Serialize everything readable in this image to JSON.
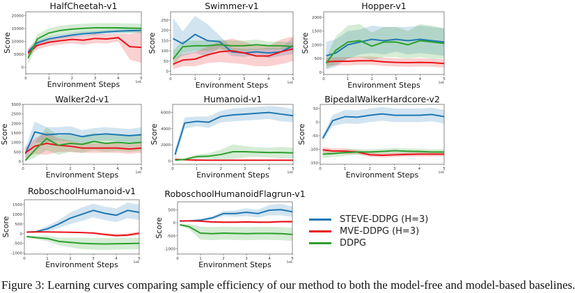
{
  "figure": {
    "caption": "Figure 3: Learning curves comparing sample efficiency of our method to both the model-free and model-based baselines.",
    "legend_entries": [
      "STEVE-DDPG (H=3)",
      "MVE-DDPG (H=3)",
      "DDPG"
    ],
    "colors": {
      "STEVE-DDPG (H=3)": "#1f77b4",
      "MVE-DDPG (H=3)": "#e8141a",
      "DDPG": "#2ca02c"
    }
  },
  "chart_data": [
    {
      "type": "line",
      "title": "HalfCheetah-v1",
      "xlabel": "Environment Steps",
      "ylabel": "Score",
      "x_offset_label": "1e6",
      "xlim": [
        0,
        5
      ],
      "ylim": [
        -2500,
        21500
      ],
      "xticks": [
        0,
        1,
        2,
        3,
        4,
        5
      ],
      "yticks": [
        0,
        5000,
        10000,
        15000,
        20000
      ],
      "x": [
        0.1,
        0.5,
        1,
        1.5,
        2,
        2.5,
        3,
        3.5,
        4,
        4.5,
        5
      ],
      "series": [
        {
          "name": "STEVE-DDPG (H=3)",
          "values": [
            6000,
            9500,
            11000,
            11800,
            12500,
            13000,
            13300,
            13700,
            14000,
            14200,
            14300
          ],
          "spread": [
            1500,
            1000,
            1000,
            900,
            900,
            900,
            900,
            900,
            900,
            900,
            900
          ]
        },
        {
          "name": "MVE-DDPG (H=3)",
          "values": [
            5500,
            8500,
            9700,
            10300,
            10800,
            10500,
            11200,
            11000,
            11500,
            8000,
            7700
          ],
          "spread": [
            1500,
            1500,
            1500,
            1500,
            1500,
            1800,
            1800,
            1800,
            1500,
            5000,
            6000
          ]
        },
        {
          "name": "DDPG",
          "values": [
            3500,
            11000,
            13300,
            14300,
            14800,
            15100,
            15300,
            15300,
            15300,
            15200,
            15100
          ],
          "spread": [
            2500,
            1800,
            1800,
            1800,
            1800,
            1800,
            1800,
            1800,
            1800,
            1800,
            1800
          ]
        }
      ]
    },
    {
      "type": "line",
      "title": "Swimmer-v1",
      "xlabel": "Environment Steps",
      "ylabel": "Score",
      "x_offset_label": "1e6",
      "xlim": [
        0,
        5
      ],
      "ylim": [
        -15,
        290
      ],
      "xticks": [
        0,
        1,
        2,
        3,
        4,
        5
      ],
      "yticks": [
        0,
        50,
        100,
        150,
        200,
        250
      ],
      "x": [
        0.1,
        0.5,
        1,
        1.5,
        2,
        2.5,
        3,
        3.5,
        4,
        4.5,
        5
      ],
      "series": [
        {
          "name": "STEVE-DDPG (H=3)",
          "values": [
            160,
            135,
            180,
            150,
            145,
            95,
            90,
            95,
            90,
            95,
            125
          ],
          "spread": [
            100,
            60,
            90,
            80,
            30,
            20,
            20,
            15,
            25,
            20,
            40
          ]
        },
        {
          "name": "MVE-DDPG (H=3)",
          "values": [
            35,
            55,
            60,
            80,
            95,
            100,
            90,
            75,
            75,
            95,
            110
          ],
          "spread": [
            25,
            30,
            35,
            40,
            50,
            60,
            55,
            50,
            50,
            60,
            60
          ]
        },
        {
          "name": "DDPG",
          "values": [
            60,
            120,
            125,
            125,
            130,
            125,
            125,
            130,
            125,
            125,
            120
          ],
          "spread": [
            40,
            30,
            25,
            25,
            25,
            25,
            25,
            25,
            20,
            20,
            20
          ]
        }
      ]
    },
    {
      "type": "line",
      "title": "Hopper-v1",
      "xlabel": "Environment Steps",
      "ylabel": "Score",
      "x_offset_label": "1e6",
      "xlim": [
        0,
        5
      ],
      "ylim": [
        -80,
        2200
      ],
      "xticks": [
        0,
        1,
        2,
        3,
        4,
        5
      ],
      "yticks": [
        0,
        500,
        1000,
        1500,
        2000
      ],
      "x": [
        0.1,
        0.5,
        1,
        1.5,
        2,
        2.5,
        3,
        3.5,
        4,
        4.5,
        5
      ],
      "series": [
        {
          "name": "STEVE-DDPG (H=3)",
          "values": [
            600,
            700,
            1000,
            1100,
            1200,
            1150,
            1200,
            1150,
            1200,
            1150,
            1100
          ],
          "spread": [
            500,
            500,
            500,
            450,
            500,
            500,
            450,
            500,
            500,
            500,
            500
          ]
        },
        {
          "name": "MVE-DDPG (H=3)",
          "values": [
            380,
            400,
            400,
            420,
            420,
            380,
            360,
            350,
            360,
            350,
            320
          ],
          "spread": [
            150,
            150,
            150,
            150,
            150,
            150,
            150,
            150,
            150,
            150,
            150
          ]
        },
        {
          "name": "DDPG",
          "values": [
            330,
            800,
            1100,
            1150,
            950,
            1100,
            1100,
            1000,
            1150,
            1100,
            1050
          ],
          "spread": [
            200,
            500,
            600,
            600,
            500,
            550,
            550,
            500,
            600,
            600,
            550
          ]
        }
      ]
    },
    {
      "type": "line",
      "title": "Walker2d-v1",
      "xlabel": "Environment Steps",
      "ylabel": "Score",
      "x_offset_label": "1e6",
      "xlim": [
        0,
        5
      ],
      "ylim": [
        -150,
        3000
      ],
      "xticks": [
        0,
        1,
        2,
        3,
        4,
        5
      ],
      "yticks": [
        0,
        500,
        1000,
        1500,
        2000,
        2500,
        3000
      ],
      "x": [
        0.1,
        0.5,
        1,
        1.5,
        2,
        2.5,
        3,
        3.5,
        4,
        4.5,
        5
      ],
      "series": [
        {
          "name": "STEVE-DDPG (H=3)",
          "values": [
            400,
            1550,
            1400,
            1450,
            1450,
            1300,
            1400,
            1450,
            1400,
            1350,
            1400
          ],
          "spread": [
            300,
            550,
            400,
            350,
            400,
            350,
            350,
            350,
            350,
            350,
            400
          ]
        },
        {
          "name": "MVE-DDPG (H=3)",
          "values": [
            450,
            800,
            950,
            850,
            800,
            700,
            700,
            700,
            700,
            650,
            700
          ],
          "spread": [
            300,
            400,
            600,
            350,
            300,
            250,
            250,
            250,
            250,
            250,
            250
          ]
        },
        {
          "name": "DDPG",
          "values": [
            50,
            600,
            1200,
            850,
            950,
            900,
            1050,
            950,
            1000,
            950,
            1000
          ],
          "spread": [
            50,
            400,
            600,
            500,
            450,
            450,
            450,
            450,
            450,
            450,
            450
          ]
        }
      ]
    },
    {
      "type": "line",
      "title": "Humanoid-v1",
      "xlabel": "Environment Steps",
      "ylabel": "Score",
      "x_offset_label": "1e6",
      "xlim": [
        0,
        5
      ],
      "ylim": [
        -400,
        7000
      ],
      "xticks": [
        0,
        1,
        2,
        3,
        4,
        5
      ],
      "yticks": [
        0,
        2000,
        4000,
        6000
      ],
      "x": [
        0.1,
        0.5,
        1,
        1.5,
        2,
        2.5,
        3,
        3.5,
        4,
        4.5,
        5
      ],
      "series": [
        {
          "name": "STEVE-DDPG (H=3)",
          "values": [
            800,
            4700,
            4900,
            4800,
            5500,
            5700,
            5800,
            5900,
            6000,
            5800,
            5600
          ],
          "spread": [
            600,
            700,
            600,
            700,
            700,
            800,
            800,
            800,
            800,
            900,
            800
          ]
        },
        {
          "name": "MVE-DDPG (H=3)",
          "values": [
            200,
            150,
            120,
            100,
            100,
            100,
            100,
            90,
            90,
            90,
            90
          ],
          "spread": [
            50,
            50,
            50,
            50,
            50,
            50,
            50,
            50,
            50,
            50,
            50
          ]
        },
        {
          "name": "DDPG",
          "values": [
            100,
            200,
            550,
            600,
            800,
            1150,
            1150,
            1100,
            1050,
            1050,
            1000
          ],
          "spread": [
            50,
            100,
            250,
            350,
            600,
            900,
            700,
            600,
            600,
            700,
            650
          ]
        }
      ]
    },
    {
      "type": "line",
      "title": "BipedalWalkerHardcore-v2",
      "xlabel": "Environment Steps",
      "ylabel": "Score",
      "x_offset_label": "1e6",
      "xlim": [
        0,
        5
      ],
      "ylim": [
        -155,
        65
      ],
      "xticks": [
        0,
        1,
        2,
        3,
        4,
        5
      ],
      "yticks": [
        -150,
        -100,
        -50,
        0,
        50
      ],
      "x": [
        0.1,
        0.5,
        1,
        1.5,
        2,
        2.5,
        3,
        3.5,
        4,
        4.5,
        5
      ],
      "series": [
        {
          "name": "STEVE-DDPG (H=3)",
          "values": [
            -60,
            5,
            20,
            18,
            25,
            30,
            25,
            25,
            25,
            28,
            20
          ],
          "spread": [
            10,
            20,
            25,
            25,
            25,
            25,
            25,
            25,
            25,
            25,
            25
          ]
        },
        {
          "name": "MVE-DDPG (H=3)",
          "values": [
            -102,
            -106,
            -107,
            -110,
            -120,
            -122,
            -120,
            -119,
            -118,
            -118,
            -118
          ],
          "spread": [
            10,
            10,
            10,
            8,
            8,
            8,
            8,
            8,
            8,
            8,
            8
          ]
        },
        {
          "name": "DDPG",
          "values": [
            -118,
            -116,
            -112,
            -110,
            -110,
            -108,
            -105,
            -107,
            -108,
            -110,
            -110
          ],
          "spread": [
            15,
            12,
            12,
            10,
            10,
            10,
            10,
            10,
            10,
            10,
            10
          ]
        }
      ]
    },
    {
      "type": "line",
      "title": "RoboschoolHumanoid-v1",
      "xlabel": "Environment Steps",
      "ylabel": "Score",
      "x_offset_label": "1e6",
      "xlim": [
        0,
        5
      ],
      "ylim": [
        -1050,
        1750
      ],
      "xticks": [
        0,
        1,
        2,
        3,
        4,
        5
      ],
      "yticks": [
        -1000,
        -500,
        0,
        500,
        1000,
        1500
      ],
      "x": [
        0.1,
        0.5,
        1,
        1.5,
        2,
        2.5,
        3,
        3.5,
        4,
        4.5,
        5
      ],
      "series": [
        {
          "name": "STEVE-DDPG (H=3)",
          "values": [
            80,
            100,
            250,
            500,
            800,
            1000,
            1200,
            1050,
            950,
            1200,
            1100
          ],
          "spread": [
            20,
            40,
            150,
            200,
            300,
            350,
            350,
            350,
            350,
            400,
            400
          ]
        },
        {
          "name": "MVE-DDPG (H=3)",
          "values": [
            80,
            90,
            90,
            80,
            70,
            60,
            30,
            -40,
            -100,
            -70,
            20
          ],
          "spread": [
            20,
            20,
            20,
            20,
            20,
            30,
            40,
            60,
            80,
            80,
            100
          ]
        },
        {
          "name": "DDPG",
          "values": [
            -150,
            -200,
            -250,
            -400,
            -450,
            -500,
            -520,
            -530,
            -520,
            -510,
            -500
          ],
          "spread": [
            50,
            80,
            150,
            200,
            250,
            300,
            300,
            300,
            300,
            300,
            300
          ]
        }
      ]
    },
    {
      "type": "line",
      "title": "RoboschoolHumanoidFlagrun-v1",
      "xlabel": "Environment Steps",
      "ylabel": "Score",
      "x_offset_label": "1e6",
      "xlim": [
        0,
        5
      ],
      "ylim": [
        -1200,
        800
      ],
      "xticks": [
        0,
        1,
        2,
        3,
        4,
        5
      ],
      "yticks": [
        -1000,
        -500,
        0,
        500
      ],
      "x": [
        0.1,
        0.5,
        1,
        1.5,
        2,
        2.5,
        3,
        3.5,
        4,
        4.5,
        5
      ],
      "series": [
        {
          "name": "STEVE-DDPG (H=3)",
          "values": [
            60,
            70,
            100,
            180,
            350,
            350,
            400,
            350,
            480,
            500,
            420
          ],
          "spread": [
            20,
            20,
            30,
            60,
            100,
            120,
            150,
            150,
            200,
            220,
            200
          ]
        },
        {
          "name": "MVE-DDPG (H=3)",
          "values": [
            70,
            70,
            60,
            30,
            20,
            20,
            30,
            20,
            20,
            40,
            40
          ],
          "spread": [
            20,
            20,
            30,
            40,
            40,
            40,
            40,
            40,
            40,
            40,
            40
          ]
        },
        {
          "name": "DDPG",
          "values": [
            -80,
            -150,
            -400,
            -420,
            -400,
            -410,
            -420,
            -410,
            -410,
            -420,
            -450
          ],
          "spread": [
            30,
            100,
            250,
            250,
            250,
            250,
            250,
            250,
            250,
            250,
            250
          ]
        }
      ]
    }
  ]
}
